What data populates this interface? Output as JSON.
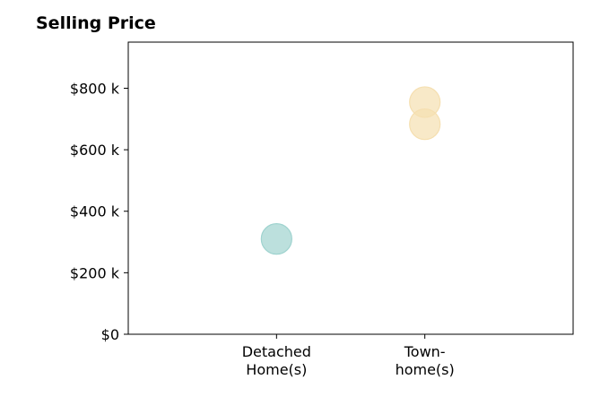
{
  "chart_data": {
    "type": "scatter",
    "title": "Selling Price",
    "xlabel": "",
    "ylabel": "",
    "categories": [
      [
        "Detached",
        "Home(s)"
      ],
      [
        "Town-",
        "home(s)"
      ]
    ],
    "ylim": [
      0,
      950000
    ],
    "yticks": [
      0,
      200000,
      400000,
      600000,
      800000
    ],
    "ytick_labels": [
      "$0",
      "$200 k",
      "$400 k",
      "$600 k",
      "$800 k"
    ],
    "grid": false,
    "series": [
      {
        "category_index": 0,
        "values": [
          310000
        ],
        "color": "#9fd3cf"
      },
      {
        "category_index": 1,
        "values": [
          755000,
          683000
        ],
        "color": "#f5dfb0"
      }
    ]
  }
}
